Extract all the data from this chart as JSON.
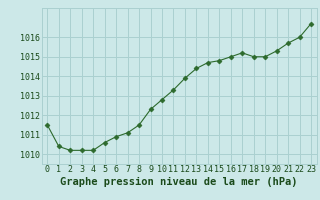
{
  "x": [
    0,
    1,
    2,
    3,
    4,
    5,
    6,
    7,
    8,
    9,
    10,
    11,
    12,
    13,
    14,
    15,
    16,
    17,
    18,
    19,
    20,
    21,
    22,
    23
  ],
  "y": [
    1011.5,
    1010.4,
    1010.2,
    1010.2,
    1010.2,
    1010.6,
    1010.9,
    1011.1,
    1011.5,
    1012.3,
    1012.8,
    1013.3,
    1013.9,
    1014.4,
    1014.7,
    1014.8,
    1015.0,
    1015.2,
    1015.0,
    1015.0,
    1015.3,
    1015.7,
    1016.0,
    1016.7
  ],
  "line_color": "#2d6a2d",
  "marker": "D",
  "marker_size": 2.5,
  "bg_color": "#cce8e8",
  "grid_color": "#aad0d0",
  "xlabel": "Graphe pression niveau de la mer (hPa)",
  "xlabel_color": "#1a4a1a",
  "xlabel_fontsize": 7.5,
  "tick_color": "#1a4a1a",
  "tick_fontsize": 6.0,
  "ylim": [
    1009.5,
    1017.5
  ],
  "yticks": [
    1010,
    1011,
    1012,
    1013,
    1014,
    1015,
    1016
  ],
  "xlim": [
    -0.5,
    23.5
  ],
  "xticks": [
    0,
    1,
    2,
    3,
    4,
    5,
    6,
    7,
    8,
    9,
    10,
    11,
    12,
    13,
    14,
    15,
    16,
    17,
    18,
    19,
    20,
    21,
    22,
    23
  ]
}
